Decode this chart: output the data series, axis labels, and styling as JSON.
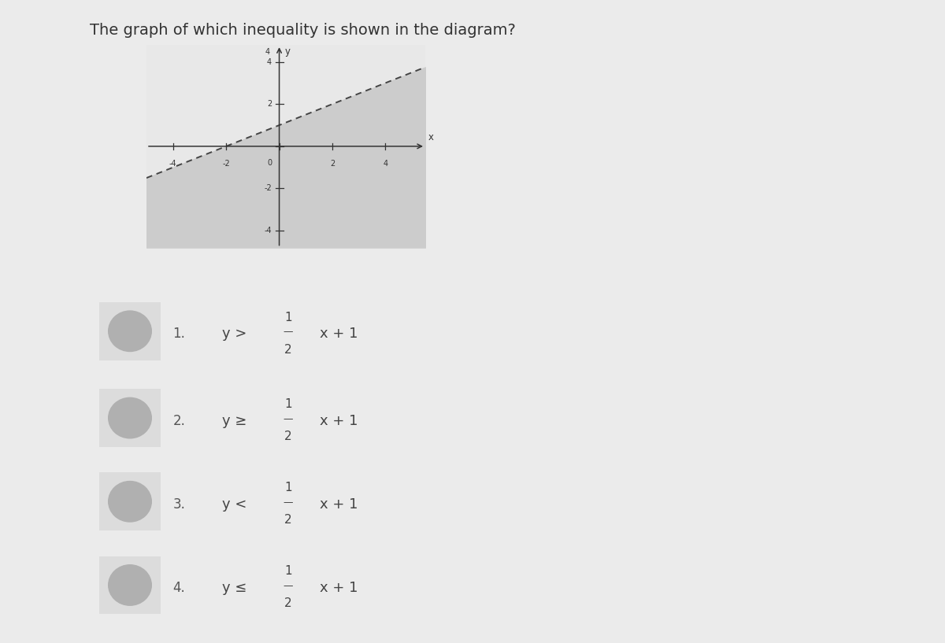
{
  "title": "The graph of which inequality is shown in the diagram?",
  "title_fontsize": 14,
  "title_color": "#333333",
  "graph_xlim": [
    -5,
    5.5
  ],
  "graph_ylim": [
    -4.8,
    4.8
  ],
  "graph_xticks": [
    -4,
    -2,
    0,
    2,
    4
  ],
  "graph_yticks": [
    -4,
    -2,
    2,
    4
  ],
  "line_slope": 0.5,
  "line_intercept": 1,
  "line_color": "#444444",
  "line_width": 1.4,
  "shade_color": "#cccccc",
  "shade_alpha": 1.0,
  "bg_color": "#ebebeb",
  "graph_bg": "#e8e8e8",
  "axis_color": "#333333",
  "choices": [
    {
      "num": "1.",
      "rel": ">",
      "rest": "x + 1"
    },
    {
      "num": "2.",
      "rel": "≥",
      "rest": "x + 1"
    },
    {
      "num": "3.",
      "rel": "<",
      "rest": "x + 1"
    },
    {
      "num": "4.",
      "rel": "≤",
      "rest": "x + 1"
    }
  ]
}
